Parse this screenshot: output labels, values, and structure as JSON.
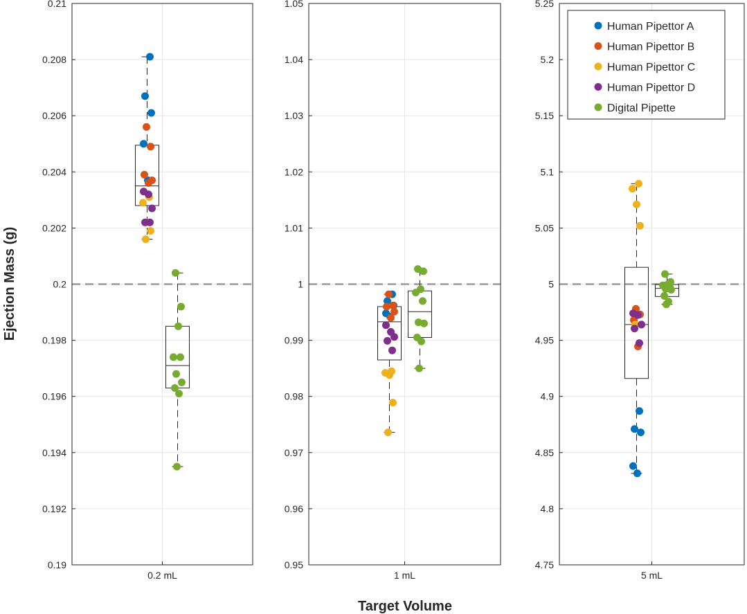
{
  "chart_data": {
    "type": "box-scatter",
    "ylabel": "Ejection Mass (g)",
    "xlabel": "Target Volume",
    "reference_line": "target volume mass (dashed)",
    "legend": {
      "placement": "top-right",
      "entries": [
        {
          "name": "Human Pipettor A",
          "color": "#0072BD"
        },
        {
          "name": "Human Pipettor B",
          "color": "#D95319"
        },
        {
          "name": "Human Pipettor C",
          "color": "#EDB120"
        },
        {
          "name": "Human Pipettor D",
          "color": "#7E2F8E"
        },
        {
          "name": "Digital Pipette",
          "color": "#77AC30"
        }
      ]
    },
    "panels": [
      {
        "category": "0.2 mL",
        "ylim": [
          0.19,
          0.21
        ],
        "yticks": [
          "0.19",
          "0.192",
          "0.194",
          "0.196",
          "0.198",
          "0.2",
          "0.202",
          "0.204",
          "0.206",
          "0.208",
          "0.21"
        ],
        "yticks_values": [
          0.19,
          0.192,
          0.194,
          0.196,
          0.198,
          0.2,
          0.202,
          0.204,
          0.206,
          0.208,
          0.21
        ],
        "target": 0.2,
        "human_box": {
          "min": 0.2016,
          "q1": 0.2028,
          "median": 0.2035,
          "q3": 0.20495,
          "max": 0.2081
        },
        "digital_box": {
          "min": 0.1935,
          "q1": 0.1963,
          "median": 0.1971,
          "q3": 0.1985,
          "max": 0.2004
        },
        "points": {
          "Human Pipettor A": [
            0.2081,
            0.2067,
            0.2061,
            0.205,
            0.2037
          ],
          "Human Pipettor B": [
            0.2056,
            0.2049,
            0.2039,
            0.2037,
            0.2036
          ],
          "Human Pipettor C": [
            0.2031,
            0.2029,
            0.2022,
            0.2019,
            0.2016
          ],
          "Human Pipettor D": [
            0.2033,
            0.2032,
            0.2027,
            0.2022,
            0.2022
          ],
          "Digital Pipette": [
            0.2004,
            0.1992,
            0.1985,
            0.1974,
            0.1974,
            0.1968,
            0.1965,
            0.1963,
            0.1961,
            0.1935
          ]
        }
      },
      {
        "category": "1 mL",
        "ylim": [
          0.95,
          1.05
        ],
        "yticks": [
          "0.95",
          "0.96",
          "0.97",
          "0.98",
          "0.99",
          "1",
          "1.01",
          "1.02",
          "1.03",
          "1.04",
          "1.05"
        ],
        "yticks_values": [
          0.95,
          0.96,
          0.97,
          0.98,
          0.99,
          1.0,
          1.01,
          1.02,
          1.03,
          1.04,
          1.05
        ],
        "target": 1.0,
        "human_box": {
          "min": 0.9736,
          "q1": 0.9865,
          "median": 0.9933,
          "q3": 0.996,
          "max": 0.9982
        },
        "digital_box": {
          "min": 0.985,
          "q1": 0.9905,
          "median": 0.9951,
          "q3": 0.9988,
          "max": 1.0027
        },
        "points": {
          "Human Pipettor A": [
            0.9982,
            0.997,
            0.9962,
            0.9948,
            0.9942
          ],
          "Human Pipettor B": [
            0.9982,
            0.9962,
            0.996,
            0.9951,
            0.994
          ],
          "Human Pipettor C": [
            0.9845,
            0.9842,
            0.9838,
            0.9789,
            0.9736
          ],
          "Human Pipettor D": [
            0.9927,
            0.9915,
            0.9906,
            0.9899,
            0.9882
          ],
          "Digital Pipette": [
            1.0027,
            1.0023,
            0.9991,
            0.9985,
            0.997,
            0.9932,
            0.993,
            0.9905,
            0.9898,
            0.985
          ]
        }
      },
      {
        "category": "5 mL",
        "ylim": [
          4.75,
          5.25
        ],
        "yticks": [
          "4.75",
          "4.8",
          "4.85",
          "4.9",
          "4.95",
          "5",
          "5.05",
          "5.1",
          "5.15",
          "5.2",
          "5.25"
        ],
        "yticks_values": [
          4.75,
          4.8,
          4.85,
          4.9,
          4.95,
          5.0,
          5.05,
          5.1,
          5.15,
          5.2,
          5.25
        ],
        "target": 5.0,
        "human_box": {
          "min": 4.8315,
          "q1": 4.916,
          "median": 4.964,
          "q3": 5.015,
          "max": 5.0895
        },
        "digital_box": {
          "min": 4.982,
          "q1": 4.989,
          "median": 4.9962,
          "q3": 4.9997,
          "max": 5.009
        },
        "points": {
          "Human Pipettor A": [
            4.887,
            4.871,
            4.868,
            4.838,
            4.8315
          ],
          "Human Pipettor B": [
            4.978,
            4.973,
            4.968,
            4.964,
            4.9445
          ],
          "Human Pipettor C": [
            5.0895,
            5.085,
            5.071,
            5.052,
            4.964
          ],
          "Human Pipettor D": [
            4.974,
            4.9725,
            4.964,
            4.9605,
            4.9475
          ],
          "Digital Pipette": [
            5.009,
            5.002,
            4.9998,
            4.999,
            4.9975,
            4.9958,
            4.995,
            4.9895,
            4.9845,
            4.982
          ]
        }
      }
    ]
  }
}
